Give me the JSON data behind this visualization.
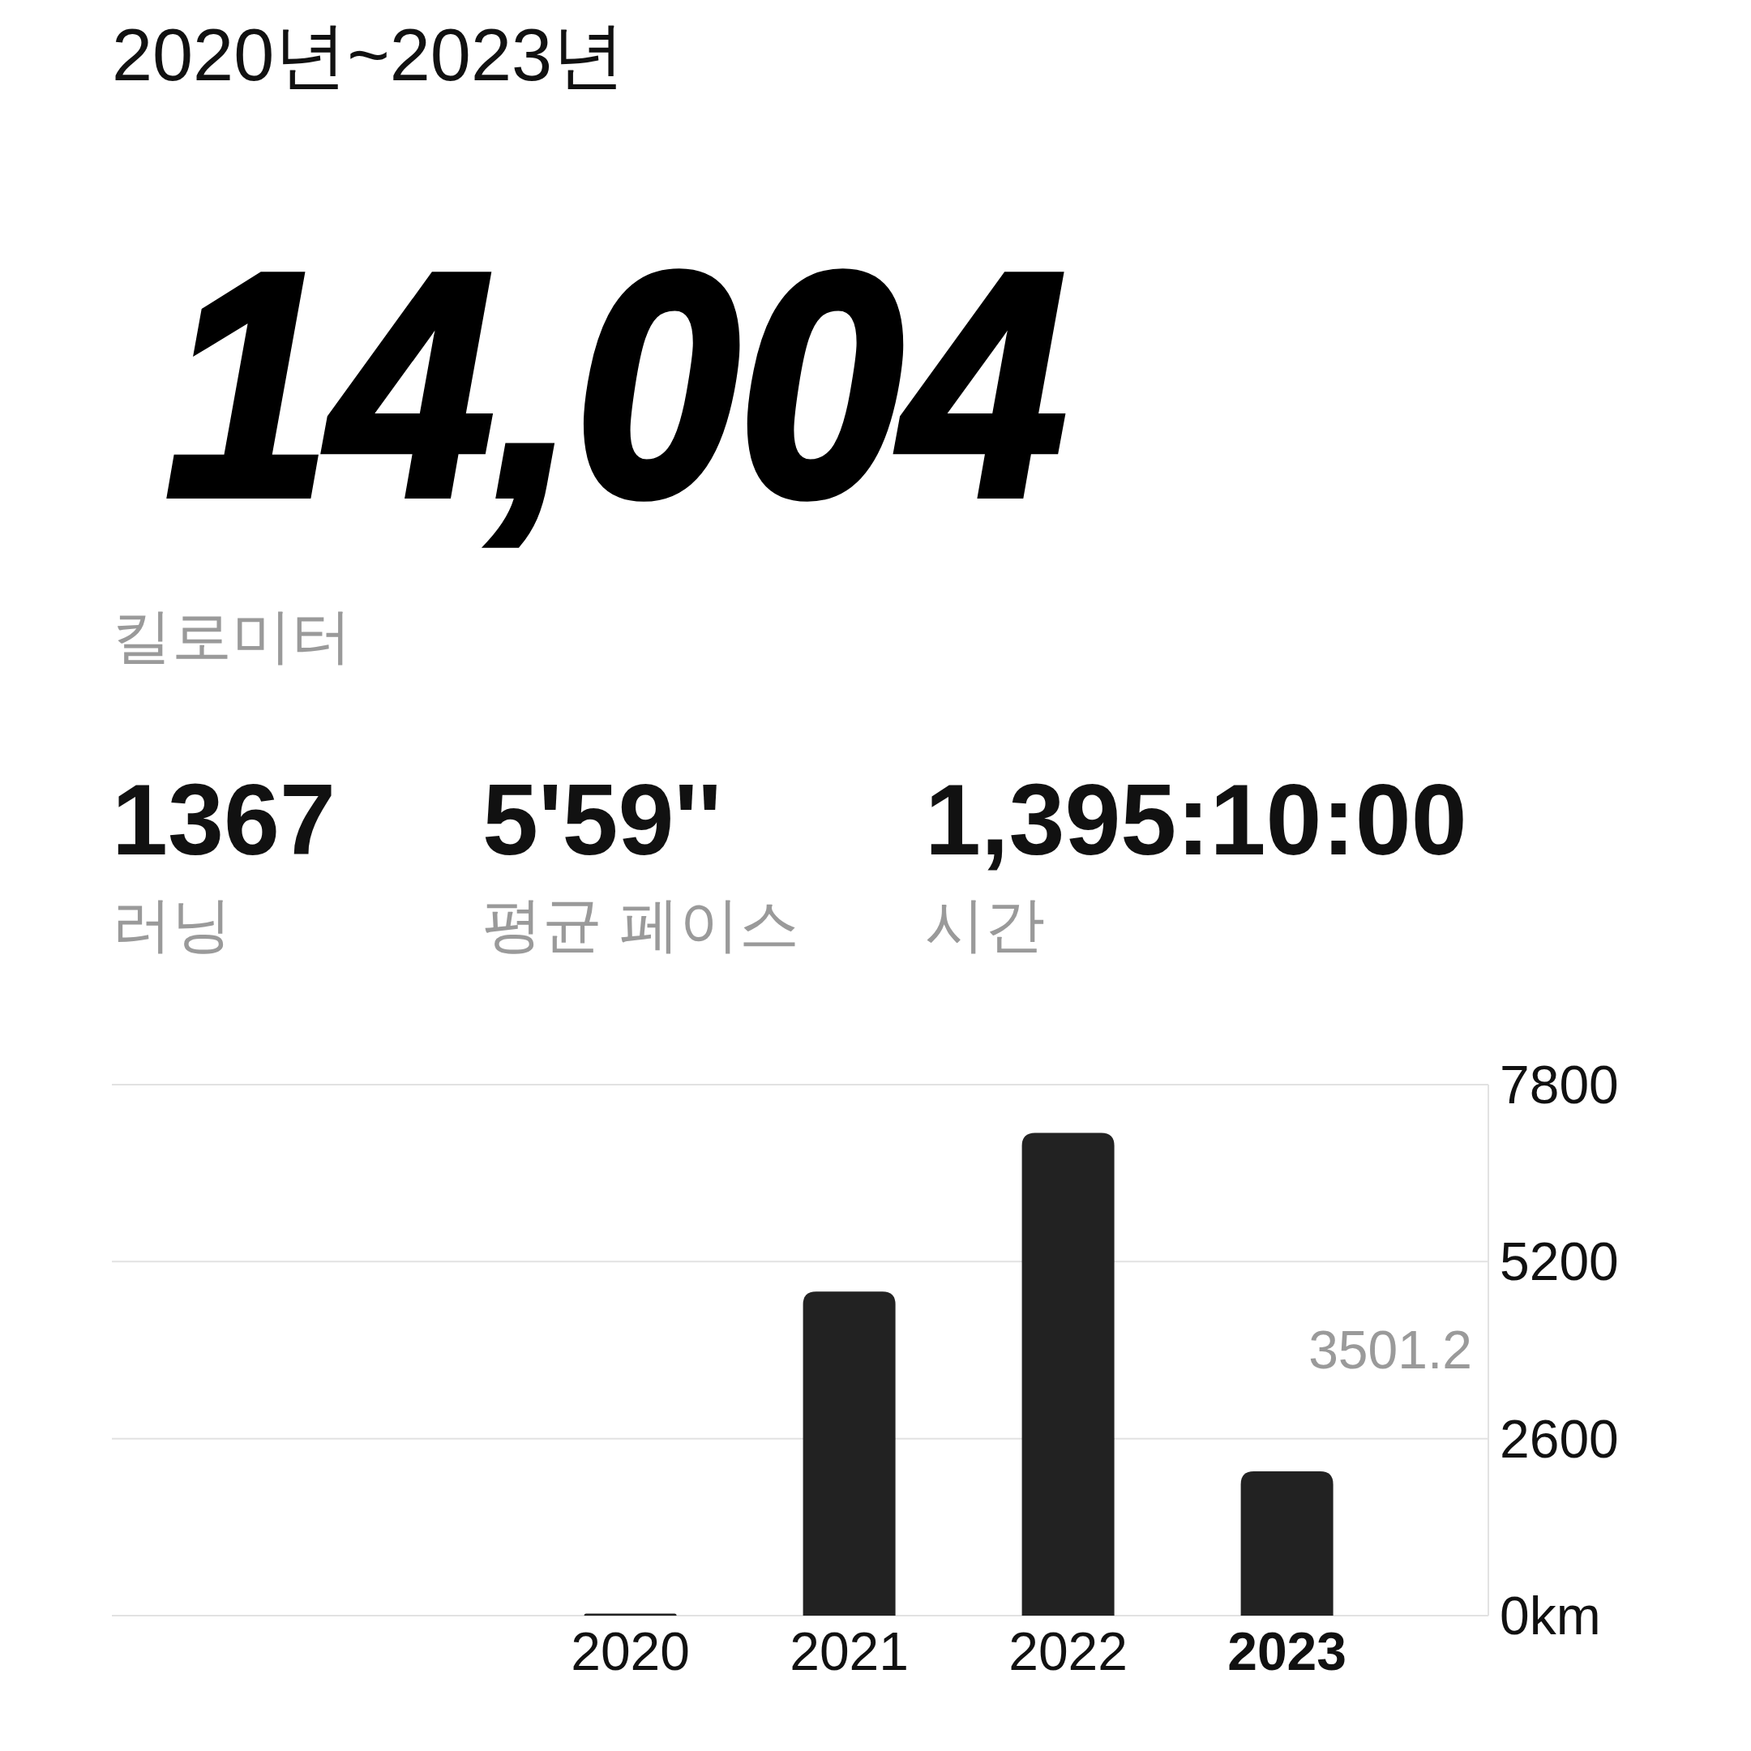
{
  "chart_data": [
    {
      "type": "other",
      "title": "2020년~2023년",
      "annotations": [
        "14,004",
        "킬로미터",
        "1367",
        "러닝",
        "5'59''",
        "평균 페이스",
        "1,395:10:00",
        "시간"
      ]
    },
    {
      "type": "bar",
      "categories": [
        "2020",
        "2021",
        "2022",
        "2023"
      ],
      "values": [
        30,
        4760,
        7090,
        2120
      ],
      "color": "#222222",
      "ylim": [
        0,
        7800
      ],
      "yticks": [
        {
          "value": 0,
          "label": "0km"
        },
        2600,
        5200,
        7800
      ],
      "grid": "y",
      "annotations": [
        "3501.2"
      ]
    }
  ]
}
